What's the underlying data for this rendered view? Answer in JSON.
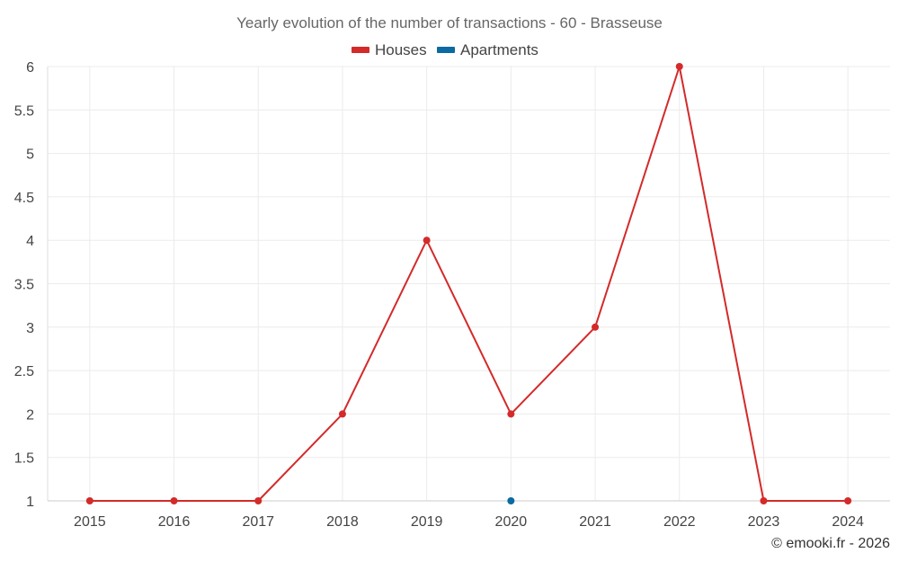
{
  "chart_data": {
    "type": "line",
    "title": "Yearly evolution of the number of transactions - 60 - Brasseuse",
    "categories": [
      "2015",
      "2016",
      "2017",
      "2018",
      "2019",
      "2020",
      "2021",
      "2022",
      "2023",
      "2024"
    ],
    "series": [
      {
        "name": "Houses",
        "color": "#d42a2a",
        "values": [
          1,
          1,
          1,
          2,
          4,
          2,
          3,
          6,
          1,
          1
        ]
      },
      {
        "name": "Apartments",
        "color": "#0a6aa1",
        "values": [
          null,
          null,
          null,
          null,
          null,
          1,
          null,
          null,
          null,
          null
        ]
      }
    ],
    "yticks": [
      "1",
      "1.5",
      "2",
      "2.5",
      "3",
      "3.5",
      "4",
      "4.5",
      "5",
      "5.5",
      "6"
    ],
    "ylim": [
      1,
      6
    ],
    "xlabel": "",
    "ylabel": "",
    "legend_position": "top-center",
    "grid": true
  },
  "credit": "© emooki.fr - 2026"
}
